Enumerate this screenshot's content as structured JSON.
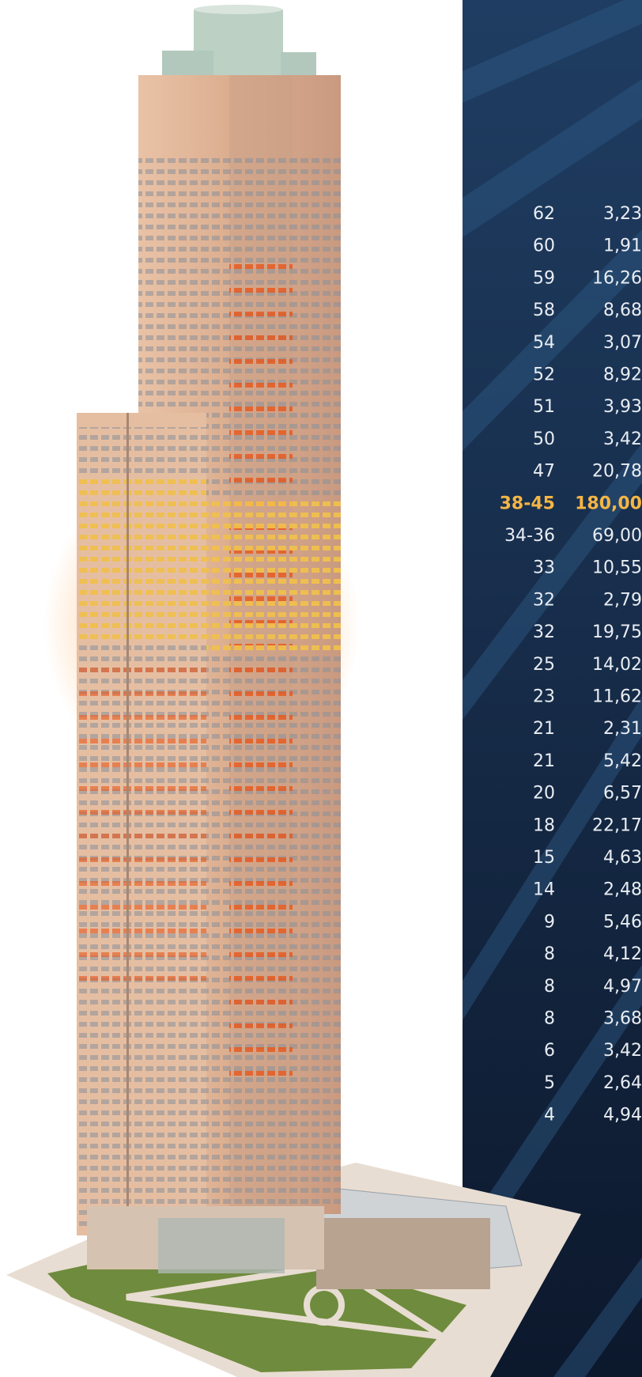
{
  "table": {
    "rows": [
      {
        "floor": "62",
        "area": "3,23"
      },
      {
        "floor": "60",
        "area": "1,91"
      },
      {
        "floor": "59",
        "area": "16,26"
      },
      {
        "floor": "58",
        "area": "8,68"
      },
      {
        "floor": "54",
        "area": "3,07"
      },
      {
        "floor": "52",
        "area": "8,92"
      },
      {
        "floor": "51",
        "area": "3,93"
      },
      {
        "floor": "50",
        "area": "3,42"
      },
      {
        "floor": "47",
        "area": "20,78"
      },
      {
        "floor": "38-45",
        "area": "180,00",
        "highlighted": true
      },
      {
        "floor": "34-36",
        "area": "69,00"
      },
      {
        "floor": "33",
        "area": "10,55"
      },
      {
        "floor": "32",
        "area": "2,79"
      },
      {
        "floor": "32",
        "area": "19,75"
      },
      {
        "floor": "25",
        "area": "14,02"
      },
      {
        "floor": "23",
        "area": "11,62"
      },
      {
        "floor": "21",
        "area": "2,31"
      },
      {
        "floor": "21",
        "area": "5,42"
      },
      {
        "floor": "20",
        "area": "6,57"
      },
      {
        "floor": "18",
        "area": "22,17"
      },
      {
        "floor": "15",
        "area": "4,63"
      },
      {
        "floor": "14",
        "area": "2,48"
      },
      {
        "floor": "9",
        "area": "5,46"
      },
      {
        "floor": "8",
        "area": "4,12"
      },
      {
        "floor": "8",
        "area": "4,97"
      },
      {
        "floor": "8",
        "area": "3,68"
      },
      {
        "floor": "6",
        "area": "3,42"
      },
      {
        "floor": "5",
        "area": "2,64"
      },
      {
        "floor": "4",
        "area": "4,94"
      }
    ]
  }
}
